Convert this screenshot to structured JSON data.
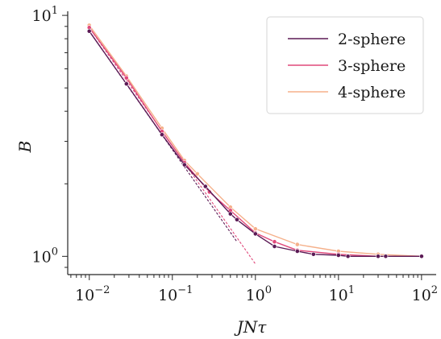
{
  "chart_data": {
    "type": "line",
    "xlabel": "JNτ",
    "ylabel": "B",
    "xscale": "log",
    "yscale": "log",
    "xlim": [
      0.0055,
      150
    ],
    "ylim": [
      0.84,
      10.4
    ],
    "grid": false,
    "legend_position": "top-right",
    "x_ticks_major": [
      {
        "value": 0.01,
        "base": "10",
        "exp": "−2"
      },
      {
        "value": 0.1,
        "base": "10",
        "exp": "−1"
      },
      {
        "value": 1,
        "base": "10",
        "exp": "0"
      },
      {
        "value": 10,
        "base": "10",
        "exp": "1"
      },
      {
        "value": 100,
        "base": "10",
        "exp": "2"
      }
    ],
    "y_ticks_major": [
      {
        "value": 1,
        "base": "10",
        "exp": "0"
      },
      {
        "value": 10,
        "base": "10",
        "exp": "1"
      }
    ],
    "series": [
      {
        "name": "2-sphere",
        "color": "#5b1a55",
        "x": [
          0.01,
          0.028,
          0.075,
          0.14,
          0.25,
          0.5,
          0.6,
          1.0,
          1.7,
          3.2,
          5,
          10,
          13,
          30,
          37,
          100
        ],
        "y": [
          8.6,
          5.2,
          3.2,
          2.4,
          1.95,
          1.5,
          1.42,
          1.24,
          1.1,
          1.05,
          1.02,
          1.01,
          1.0,
          1.0,
          1.0,
          1.0
        ]
      },
      {
        "name": "3-sphere",
        "color": "#e0487a",
        "x": [
          0.01,
          0.028,
          0.075,
          0.14,
          0.28,
          0.5,
          1.0,
          1.7,
          3.2,
          10,
          30,
          100
        ],
        "y": [
          8.9,
          5.5,
          3.3,
          2.45,
          1.85,
          1.55,
          1.25,
          1.15,
          1.06,
          1.02,
          1.0,
          1.0
        ]
      },
      {
        "name": "4-sphere",
        "color": "#f5b08a",
        "x": [
          0.01,
          0.028,
          0.075,
          0.14,
          0.2,
          0.5,
          1.0,
          3.2,
          10,
          30,
          100
        ],
        "y": [
          9.1,
          5.6,
          3.4,
          2.5,
          2.2,
          1.6,
          1.3,
          1.12,
          1.05,
          1.02,
          1.0
        ]
      }
    ],
    "reference_lines": [
      {
        "series": "2-sphere",
        "color": "#5b1a55",
        "x": [
          0.01,
          0.6
        ],
        "y": [
          8.6,
          1.15
        ]
      },
      {
        "series": "3-sphere",
        "color": "#e0487a",
        "x": [
          0.01,
          1.0
        ],
        "y": [
          8.9,
          0.93
        ]
      }
    ]
  }
}
